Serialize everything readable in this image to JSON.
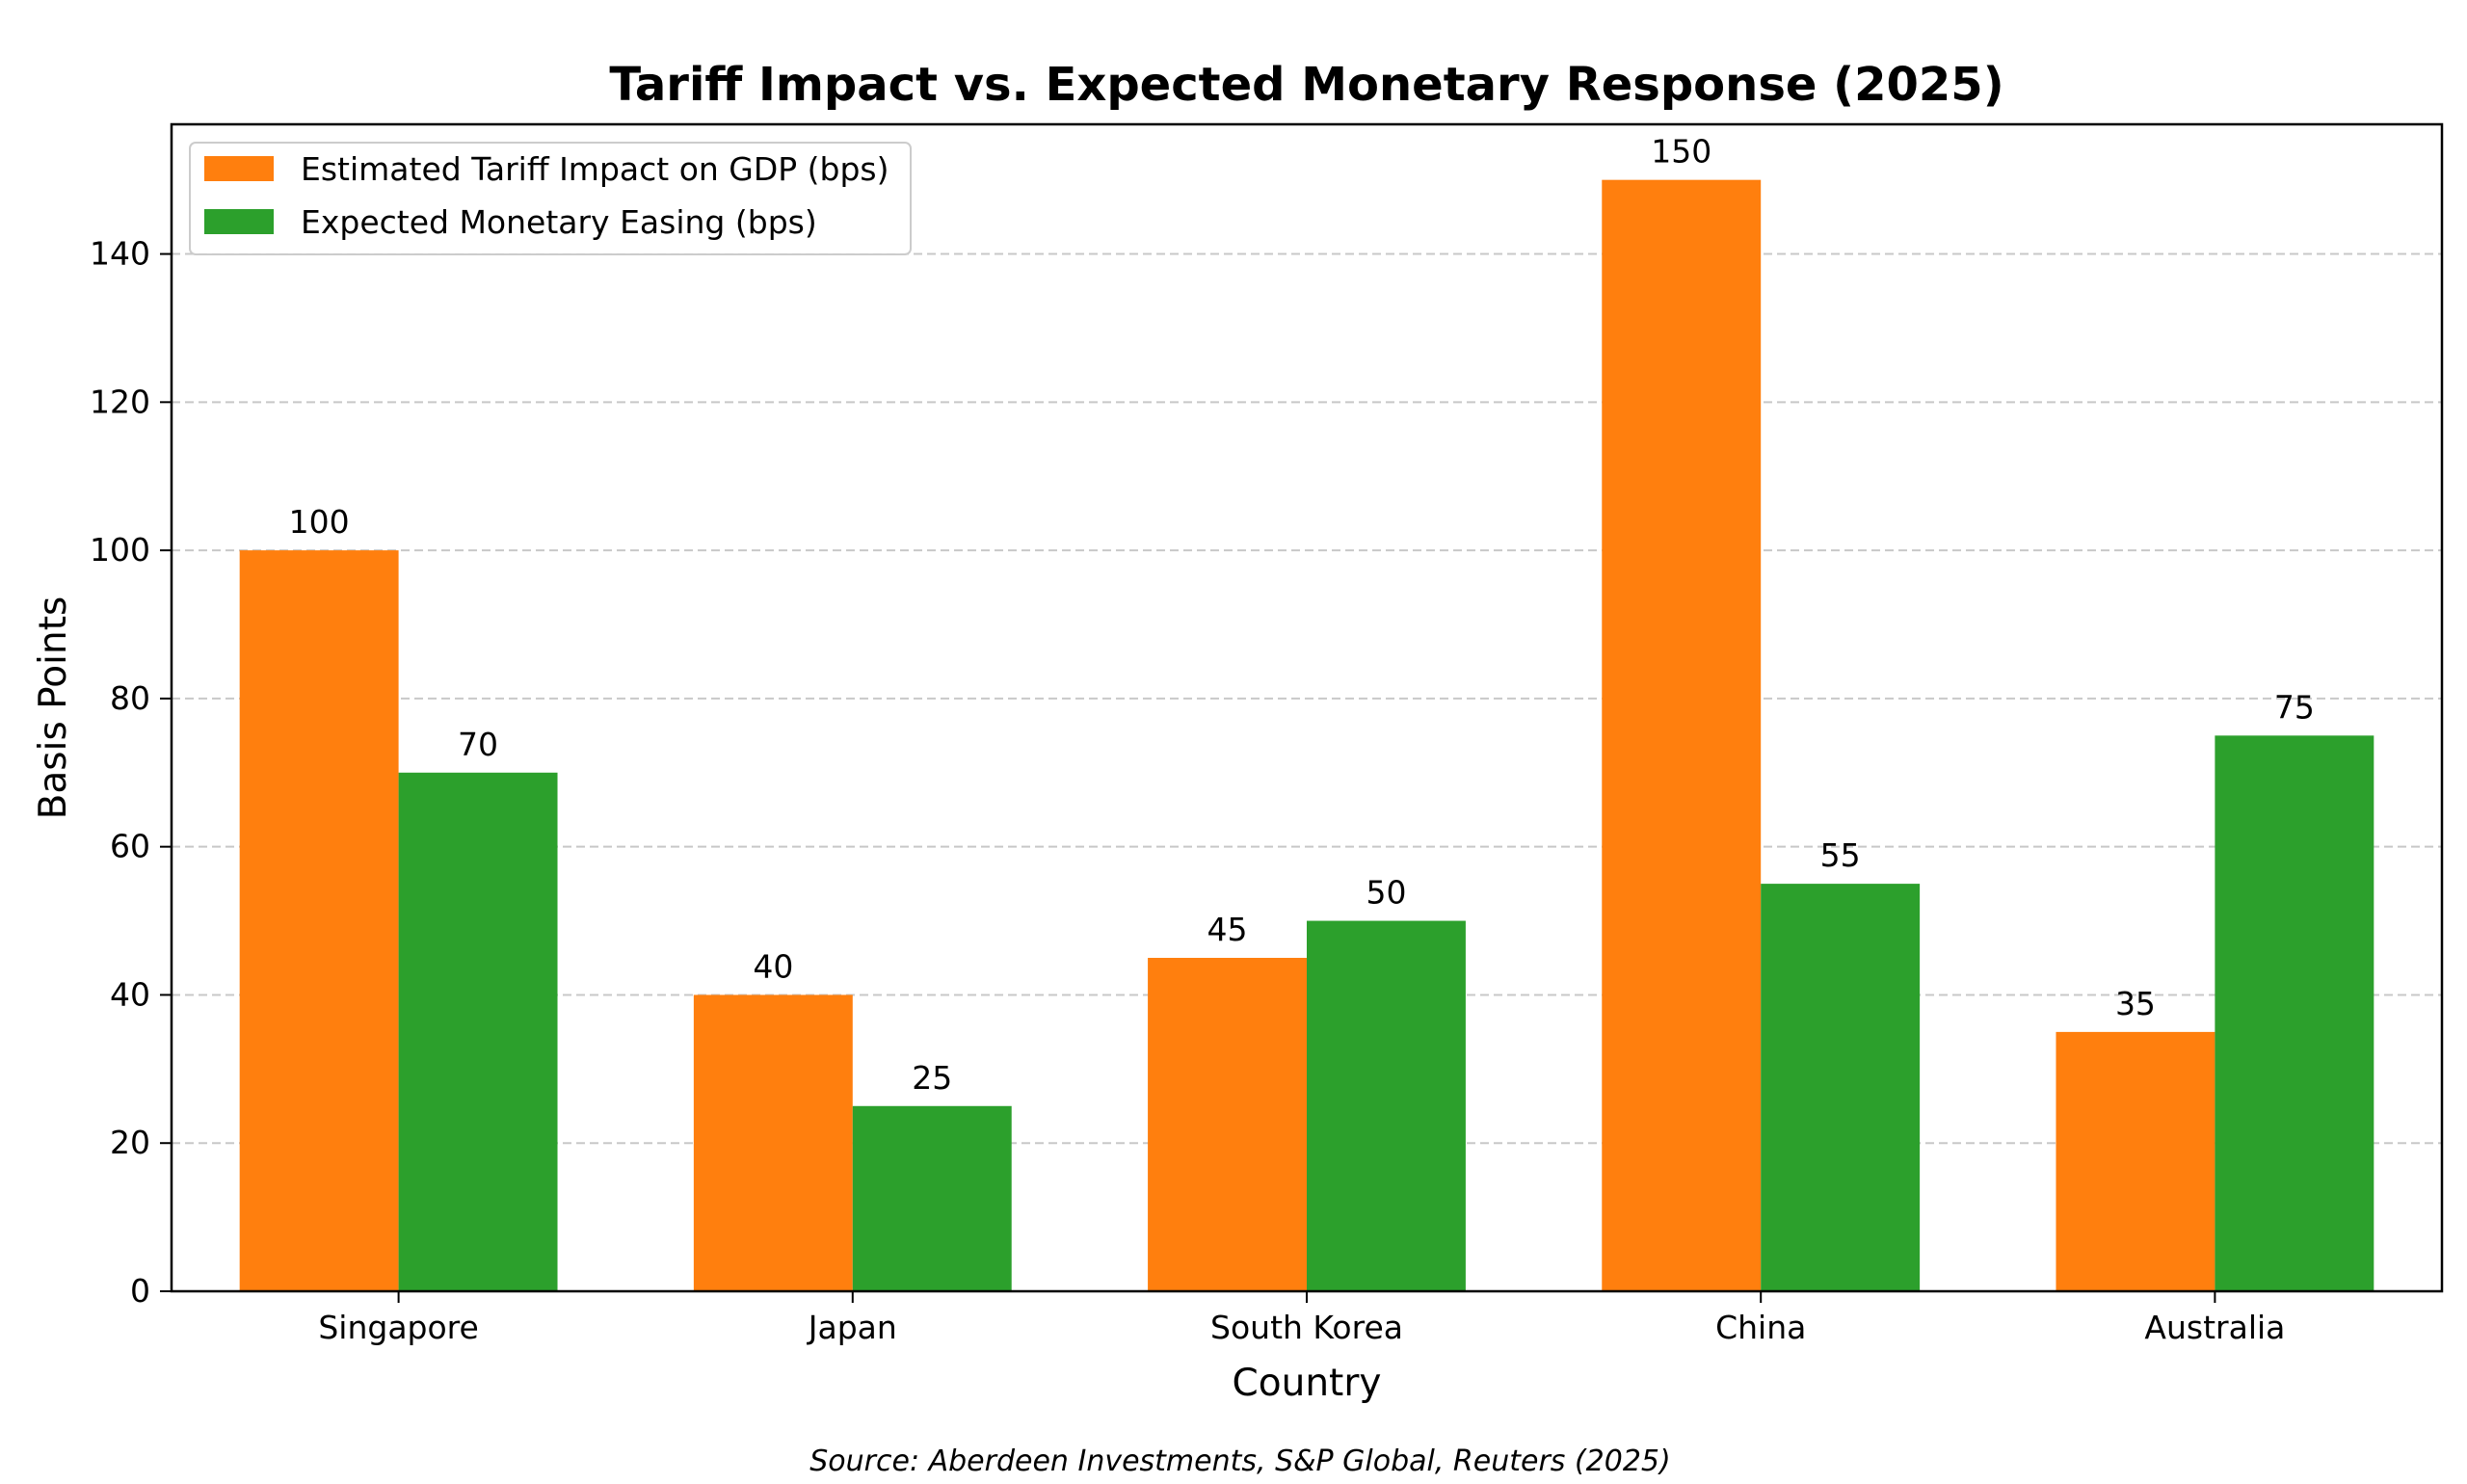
{
  "chart_data": {
    "type": "bar",
    "title": "Tariff Impact vs. Expected Monetary Response (2025)",
    "xlabel": "Country",
    "ylabel": "Basis Points",
    "categories": [
      "Singapore",
      "Japan",
      "South Korea",
      "China",
      "Australia"
    ],
    "series": [
      {
        "name": "Estimated Tariff Impact on GDP (bps)",
        "color": "#ff7f0e",
        "values": [
          100,
          40,
          45,
          150,
          35
        ]
      },
      {
        "name": "Expected Monetary Easing (bps)",
        "color": "#2ca02c",
        "values": [
          70,
          25,
          50,
          55,
          75
        ]
      }
    ],
    "ylim": [
      0,
      157.5
    ],
    "yticks": [
      0,
      20,
      40,
      60,
      80,
      100,
      120,
      140
    ],
    "grid": true,
    "grid_axis": "y",
    "legend_position": "top-left",
    "data_labels": true,
    "source": "Source: Aberdeen Investments, S&P Global, Reuters (2025)"
  }
}
